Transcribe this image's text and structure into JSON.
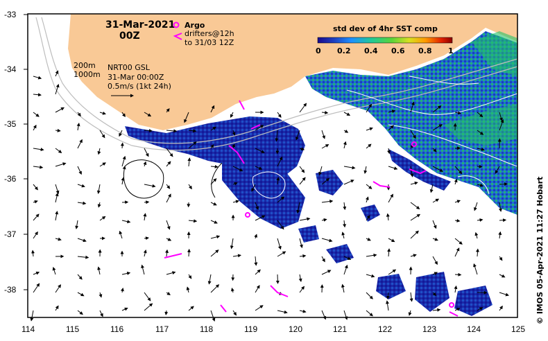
{
  "header": {
    "date": "31-Mar-2021",
    "time": "00Z"
  },
  "argo_legend": {
    "argo_label": "Argo",
    "drifters_line1": "drifters@12h",
    "drifters_line2": "to 31/03 12Z",
    "argo_color": "#ff00ff"
  },
  "depth_legend": {
    "line1": "200m",
    "line2": "1000m"
  },
  "product_info": {
    "line1": "NRT00 GSL",
    "line2": "31-Mar 00:00Z",
    "line3": "0.5m/s (1kt 24h)"
  },
  "colorbar": {
    "title": "std dev of 4hr SST comp",
    "ticks": [
      "0",
      "0.2",
      "0.4",
      "0.6",
      "0.8",
      "1"
    ],
    "stops": [
      "#1a0a8c",
      "#1f3fbf",
      "#1e90ff",
      "#20c997",
      "#5ad43a",
      "#d8e020",
      "#ff9a00",
      "#e02000",
      "#8b0000"
    ]
  },
  "axes": {
    "lon_ticks": [
      "114",
      "115",
      "116",
      "117",
      "118",
      "119",
      "120",
      "121",
      "122",
      "123",
      "124",
      "125"
    ],
    "lat_ticks": [
      "-33",
      "-34",
      "-35",
      "-36",
      "-37",
      "-38"
    ]
  },
  "credit": "© IMOS 05-Apr-2021 11:27 Hobart",
  "colors": {
    "land": "#f9c996",
    "ocean": "#ffffff",
    "sst_low": "#1a1a9c",
    "sst_mid": "#1e7fd8",
    "sst_high": "#22c36a",
    "isobath": "#bdbdbd"
  }
}
